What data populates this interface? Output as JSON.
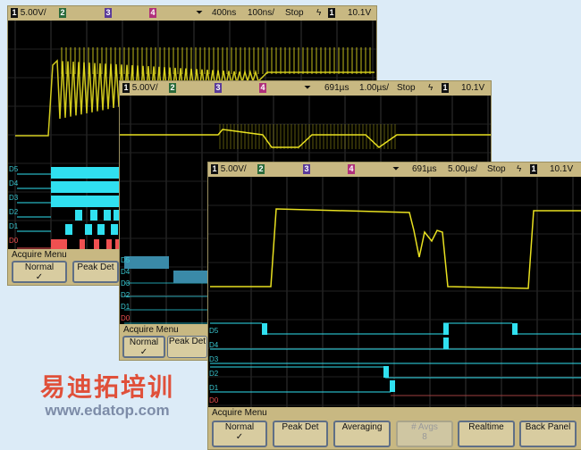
{
  "screens": [
    {
      "header": {
        "ch1": "1",
        "scale": "5.00V/",
        "ch2": "2",
        "ch3": "3",
        "ch4": "4",
        "delay": "400ns",
        "timebase": "100ns/",
        "run_state": "Stop",
        "trig_ch": "1",
        "trig_level": "10.1V"
      },
      "menu": {
        "title": "Acquire Menu",
        "buttons": [
          {
            "label": "Normal",
            "check": "✓"
          },
          {
            "label": "Peak Det"
          }
        ]
      },
      "digital_labels": [
        "D5",
        "D4",
        "D3",
        "D2",
        "D1",
        "D0"
      ]
    },
    {
      "header": {
        "ch1": "1",
        "scale": "5.00V/",
        "ch2": "2",
        "ch3": "3",
        "ch4": "4",
        "delay": "691µs",
        "timebase": "1.00µs/",
        "run_state": "Stop",
        "trig_ch": "1",
        "trig_level": "10.1V"
      },
      "menu": {
        "title": "Acquire Menu",
        "buttons": [
          {
            "label": "Normal",
            "check": "✓"
          },
          {
            "label": "Peak Det"
          }
        ]
      },
      "digital_labels": [
        "D5",
        "D4",
        "D3",
        "D2",
        "D1",
        "D0"
      ]
    },
    {
      "header": {
        "ch1": "1",
        "scale": "5.00V/",
        "ch2": "2",
        "ch3": "3",
        "ch4": "4",
        "delay": "691µs",
        "timebase": "5.00µs/",
        "run_state": "Stop",
        "trig_ch": "1",
        "trig_level": "10.1V"
      },
      "menu": {
        "title": "Acquire Menu",
        "buttons": [
          {
            "label": "Normal",
            "check": "✓"
          },
          {
            "label": "Peak Det"
          },
          {
            "label": "Averaging"
          },
          {
            "label": "# Avgs",
            "value": "8",
            "disabled": true
          },
          {
            "label": "Realtime"
          },
          {
            "label": "Back Panel"
          }
        ]
      },
      "digital_labels": [
        "D5",
        "D4",
        "D3",
        "D2",
        "D1",
        "D0"
      ]
    }
  ],
  "watermark": {
    "cn": "易迪拓培训",
    "url": "www.edatop.com"
  },
  "colors": {
    "analog": "#e8e020",
    "digital": "#30e0f0",
    "d0": "#f05050",
    "header": "#c8b882"
  }
}
